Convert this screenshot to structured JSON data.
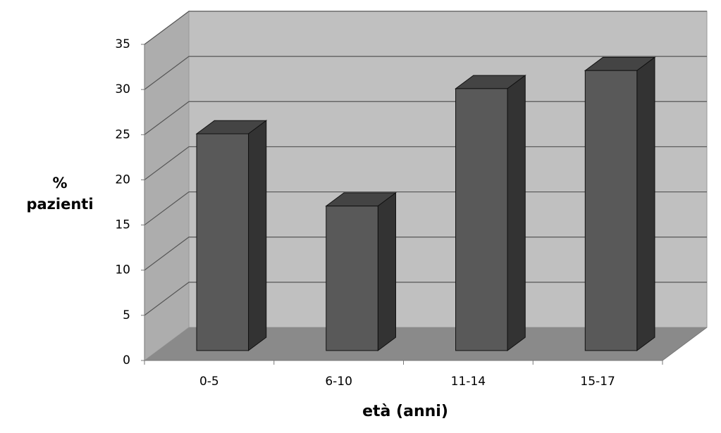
{
  "chart_data": {
    "type": "bar3d",
    "categories": [
      "0-5",
      "6-10",
      "11-14",
      "15-17"
    ],
    "values": [
      24,
      16,
      29,
      31
    ],
    "color": "#595959",
    "ylim": [
      0,
      35
    ],
    "yticks": [
      0,
      5,
      10,
      15,
      20,
      25,
      30,
      35
    ],
    "grid": true,
    "x_label": "età (anni)",
    "y_label": "% pazienti"
  }
}
